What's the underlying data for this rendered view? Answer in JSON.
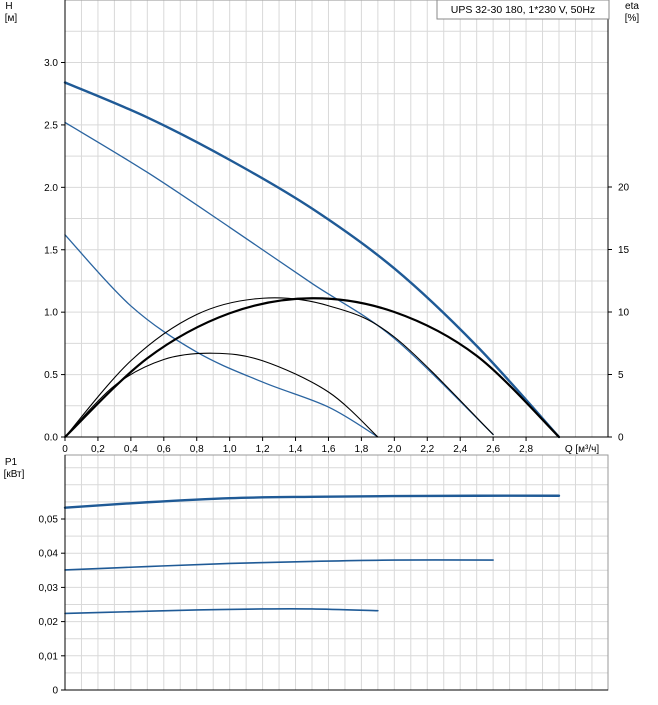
{
  "chart_data": [
    {
      "type": "line",
      "title": "",
      "legend_text": "UPS 32-30 180, 1*230 V, 50Hz",
      "legend_placement": "top-right",
      "ylabel_line1": "H",
      "ylabel_line2": "[м]",
      "y2label_line1": "eta",
      "y2label_line2": "[%]",
      "xlabel": "Q [м³/ч]",
      "xlim": [
        0,
        3.3
      ],
      "ylim": [
        0,
        3.5
      ],
      "y2lim": [
        0,
        35
      ],
      "grid": true,
      "x_tick_labels": [
        "0",
        "0,2",
        "0,4",
        "0,6",
        "0,8",
        "1,0",
        "1,2",
        "1,4",
        "1,6",
        "1,8",
        "2,0",
        "2,2",
        "2,4",
        "2,6",
        "2,8"
      ],
      "x_tick_values": [
        0,
        0.2,
        0.4,
        0.6,
        0.8,
        1.0,
        1.2,
        1.4,
        1.6,
        1.8,
        2.0,
        2.2,
        2.4,
        2.6,
        2.8
      ],
      "y_tick_labels": [
        "0.0",
        "0.5",
        "1.0",
        "1.5",
        "2.0",
        "2.5",
        "3.0"
      ],
      "y_tick_values": [
        0,
        0.5,
        1.0,
        1.5,
        2.0,
        2.5,
        3.0
      ],
      "y2_tick_labels": [
        "0",
        "5",
        "10",
        "15",
        "20"
      ],
      "y2_tick_values": [
        0,
        5,
        10,
        15,
        20
      ],
      "series": [
        {
          "kind": "head",
          "color": "#1f5a96",
          "width": 2.4,
          "points": [
            [
              0,
              2.84
            ],
            [
              0.5,
              2.56
            ],
            [
              1.0,
              2.22
            ],
            [
              1.5,
              1.83
            ],
            [
              2.0,
              1.35
            ],
            [
              2.5,
              0.73
            ],
            [
              3.0,
              0.0
            ]
          ]
        },
        {
          "kind": "head",
          "color": "#2a64a0",
          "width": 1.3,
          "points": [
            [
              0,
              2.52
            ],
            [
              0.5,
              2.12
            ],
            [
              1.0,
              1.68
            ],
            [
              1.5,
              1.23
            ],
            [
              2.0,
              0.79
            ],
            [
              2.6,
              0.02
            ]
          ]
        },
        {
          "kind": "head",
          "color": "#2a64a0",
          "width": 1.3,
          "points": [
            [
              0,
              1.62
            ],
            [
              0.4,
              1.05
            ],
            [
              0.8,
              0.68
            ],
            [
              1.2,
              0.44
            ],
            [
              1.6,
              0.24
            ],
            [
              1.9,
              0.0
            ]
          ]
        },
        {
          "kind": "eta",
          "color": "#000000",
          "width": 2.2,
          "points": [
            [
              0,
              0
            ],
            [
              0.5,
              6.3
            ],
            [
              1.0,
              9.9
            ],
            [
              1.5,
              11.1
            ],
            [
              2.0,
              10.0
            ],
            [
              2.5,
              6.5
            ],
            [
              3.0,
              0
            ]
          ]
        },
        {
          "kind": "eta",
          "color": "#000000",
          "width": 1.1,
          "points": [
            [
              0,
              0
            ],
            [
              0.4,
              6.1
            ],
            [
              0.8,
              9.8
            ],
            [
              1.2,
              11.1
            ],
            [
              1.6,
              10.5
            ],
            [
              2.0,
              8.0
            ],
            [
              2.6,
              0.2
            ]
          ]
        },
        {
          "kind": "eta",
          "color": "#000000",
          "width": 1.1,
          "points": [
            [
              0,
              0
            ],
            [
              0.3,
              4.1
            ],
            [
              0.6,
              6.2
            ],
            [
              0.9,
              6.7
            ],
            [
              1.2,
              6.1
            ],
            [
              1.6,
              3.6
            ],
            [
              1.9,
              0
            ]
          ]
        }
      ]
    },
    {
      "type": "line",
      "title": "",
      "ylabel_line1": "P1",
      "ylabel_line2": "[кВт]",
      "xlim": [
        0,
        3.3
      ],
      "ylim": [
        0,
        0.065
      ],
      "grid": true,
      "y_tick_labels": [
        "0",
        "0,01",
        "0,02",
        "0,03",
        "0,04",
        "0,05"
      ],
      "y_tick_values": [
        0,
        0.01,
        0.02,
        0.03,
        0.04,
        0.05
      ],
      "series": [
        {
          "color": "#1f5a96",
          "width": 2.4,
          "points": [
            [
              0,
              0.0533
            ],
            [
              0.5,
              0.0549
            ],
            [
              1.0,
              0.0561
            ],
            [
              1.5,
              0.0565
            ],
            [
              2.0,
              0.0567
            ],
            [
              2.5,
              0.0568
            ],
            [
              3.0,
              0.0568
            ]
          ]
        },
        {
          "color": "#1f5a96",
          "width": 1.6,
          "points": [
            [
              0,
              0.0351
            ],
            [
              0.5,
              0.0361
            ],
            [
              1.0,
              0.037
            ],
            [
              1.5,
              0.0376
            ],
            [
              2.0,
              0.038
            ],
            [
              2.6,
              0.038
            ]
          ]
        },
        {
          "color": "#1f5a96",
          "width": 1.6,
          "points": [
            [
              0,
              0.0224
            ],
            [
              0.4,
              0.0229
            ],
            [
              0.8,
              0.0234
            ],
            [
              1.2,
              0.0237
            ],
            [
              1.5,
              0.0237
            ],
            [
              1.9,
              0.0232
            ]
          ]
        }
      ]
    }
  ]
}
